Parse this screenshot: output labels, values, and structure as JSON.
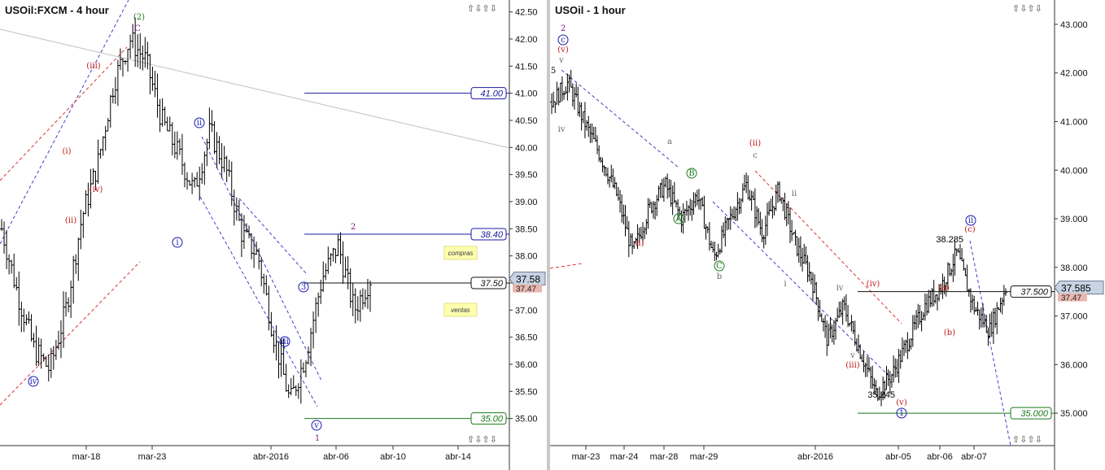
{
  "charts": [
    {
      "title": "USOil:FXCM - 4 hour",
      "controls": "⇧⇩⇧⇩",
      "chart_data": {
        "type": "line",
        "series": [
          {
            "values": [
              38.5,
              37.3,
              36.3,
              35.9,
              37.0,
              38.7,
              39.7,
              41.2,
              42.0,
              41.6,
              40.5,
              39.9,
              39.2,
              40.3,
              39.6,
              38.4,
              38.0,
              36.5,
              35.3,
              36.2,
              37.6,
              38.2,
              37.0,
              37.58
            ]
          }
        ],
        "ylim": [
          34.65,
          42.6
        ],
        "yticks": [
          "42.50",
          "42.00",
          "41.50",
          "41.00",
          "40.50",
          "40.00",
          "39.50",
          "39.00",
          "38.50",
          "38.00",
          "37.50",
          "37.00",
          "36.50",
          "36.00",
          "35.50",
          "35.00"
        ],
        "xticks": [
          "mar-18",
          "mar-23",
          "abr-2016",
          "abr-06",
          "abr-10",
          "abr-14"
        ],
        "levels": [
          {
            "label": "41.00",
            "color": "#1a1aa0"
          },
          {
            "label": "38.40",
            "color": "#1a1aa0"
          },
          {
            "label": "37.50",
            "color": "#111111"
          },
          {
            "label": "35.00",
            "color": "#1a7a1a"
          }
        ],
        "price_tag": "37.58",
        "price_tag2": "37.47",
        "notes": [
          {
            "text": "compras"
          },
          {
            "text": "ventas"
          }
        ],
        "wave_labels": [
          "(2)",
          "C",
          "(iii)",
          "(i)",
          "(iv)",
          "(ii)",
          "ii",
          "i",
          "iv",
          "iii",
          "v",
          "2",
          "1",
          "3"
        ]
      }
    },
    {
      "title": "USOil - 1 hour",
      "controls": "⇧⇩⇧⇩",
      "chart_data": {
        "type": "line",
        "series": [
          {
            "values": [
              41.4,
              41.8,
              41.0,
              40.3,
              39.5,
              38.3,
              39.2,
              39.7,
              39.0,
              39.5,
              38.2,
              39.0,
              39.7,
              38.7,
              39.6,
              38.5,
              37.8,
              36.5,
              37.2,
              36.3,
              35.4,
              35.8,
              36.5,
              37.2,
              37.6,
              38.3,
              37.2,
              36.7,
              37.585
            ]
          }
        ],
        "ylim": [
          34.5,
          43.3
        ],
        "yticks": [
          "43.000",
          "42.000",
          "41.000",
          "40.000",
          "39.000",
          "38.000",
          "37.000",
          "36.000",
          "35.000"
        ],
        "xticks": [
          "mar-23",
          "mar-24",
          "mar-28",
          "mar-29",
          "abr-2016",
          "abr-05",
          "abr-06",
          "abr-07"
        ],
        "levels": [
          {
            "label": "37.500",
            "color": "#111111"
          },
          {
            "label": "35.000",
            "color": "#1a7a1a"
          }
        ],
        "price_tag": "37.585",
        "price_tag2": "37.47",
        "annotations": [
          "38.285",
          "35.245"
        ],
        "wave_labels": [
          "2",
          "c",
          "(v)",
          "5",
          "v",
          "iv",
          "a",
          "b",
          "c",
          "(ii)",
          "ii",
          "(i)",
          "i",
          "iv",
          "iii",
          "v",
          "(iv)",
          "(iii)",
          "(v)",
          "1",
          "(a)",
          "(b)",
          "(c)",
          "ii",
          "A",
          "B",
          "C"
        ]
      }
    }
  ]
}
